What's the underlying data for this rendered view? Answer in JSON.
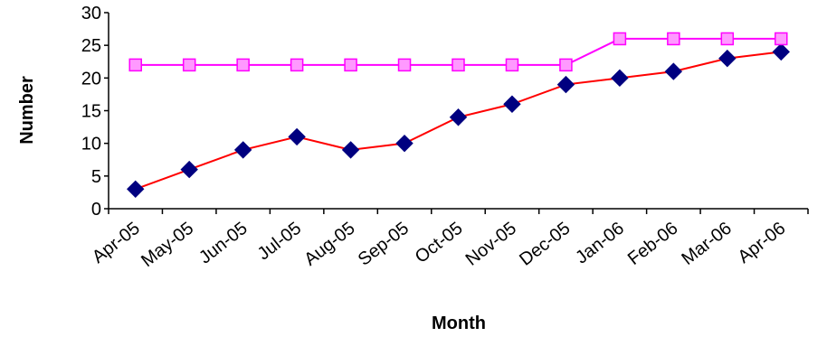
{
  "chart_data": {
    "type": "line",
    "categories": [
      "Apr-05",
      "May-05",
      "Jun-05",
      "Jul-05",
      "Aug-05",
      "Sep-05",
      "Oct-05",
      "Nov-05",
      "Dec-05",
      "Jan-06",
      "Feb-06",
      "Mar-06",
      "Apr-06"
    ],
    "series": [
      {
        "values": [
          3,
          6,
          9,
          11,
          9,
          10,
          14,
          16,
          19,
          20,
          21,
          23,
          24
        ],
        "line_color": "#ff0000",
        "marker": "diamond",
        "marker_color": "#000080"
      },
      {
        "values": [
          22,
          22,
          22,
          22,
          22,
          22,
          22,
          22,
          22,
          26,
          26,
          26,
          26
        ],
        "line_color": "#ff00ff",
        "marker": "square",
        "marker_fill": "#ff99ff",
        "marker_stroke": "#ff00ff"
      }
    ],
    "xlabel": "Month",
    "ylabel": "Number",
    "ylim": [
      0,
      30
    ],
    "yticks": [
      0,
      5,
      10,
      15,
      20,
      25,
      30
    ],
    "grid": false,
    "legend": "none"
  }
}
